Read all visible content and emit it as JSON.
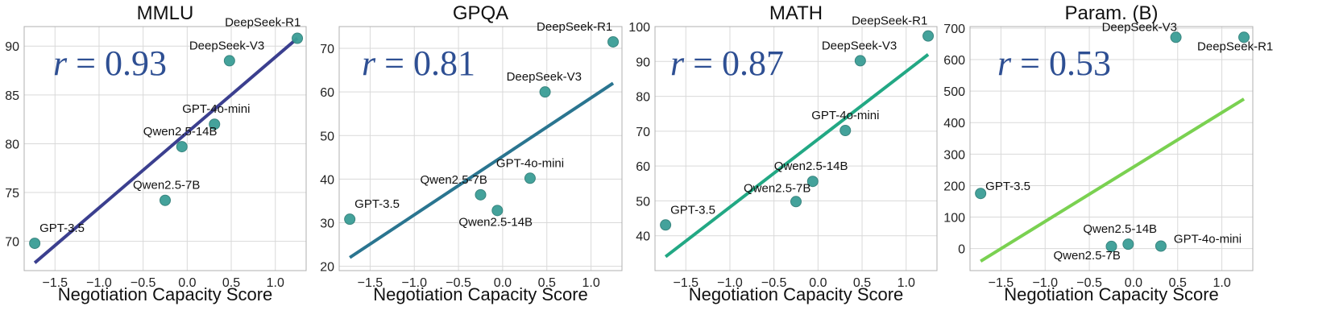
{
  "chart_data": [
    {
      "type": "scatter",
      "title": "MMLU",
      "xlabel": "Negotiation Capacity Score",
      "xlim": [
        -1.85,
        1.35
      ],
      "ylim": [
        67,
        92
      ],
      "xticks": [
        -1.5,
        -1.0,
        -0.5,
        0.0,
        0.5,
        1.0
      ],
      "yticks": [
        70,
        75,
        80,
        85,
        90
      ],
      "r_label": "0.93",
      "line_color": "#3b3f8f",
      "fit": {
        "x": [
          -1.73,
          1.25
        ],
        "y": [
          67.8,
          90.8
        ]
      },
      "points": [
        {
          "name": "DeepSeek-R1",
          "x": 1.25,
          "y": 90.8
        },
        {
          "name": "DeepSeek-V3",
          "x": 0.48,
          "y": 88.5
        },
        {
          "name": "GPT-4o-mini",
          "x": 0.31,
          "y": 82.0
        },
        {
          "name": "Qwen2.5-14B",
          "x": -0.06,
          "y": 79.7
        },
        {
          "name": "Qwen2.5-7B",
          "x": -0.25,
          "y": 74.2
        },
        {
          "name": "GPT-3.5",
          "x": -1.73,
          "y": 69.8
        }
      ]
    },
    {
      "type": "scatter",
      "title": "GPQA",
      "xlabel": "Negotiation Capacity Score",
      "xlim": [
        -1.85,
        1.35
      ],
      "ylim": [
        19,
        75
      ],
      "xticks": [
        -1.5,
        -1.0,
        -0.5,
        0.0,
        0.5,
        1.0
      ],
      "yticks": [
        20,
        30,
        40,
        50,
        60,
        70
      ],
      "r_label": "0.81",
      "line_color": "#2a7590",
      "fit": {
        "x": [
          -1.73,
          1.25
        ],
        "y": [
          22.0,
          62.0
        ]
      },
      "points": [
        {
          "name": "DeepSeek-R1",
          "x": 1.25,
          "y": 71.5
        },
        {
          "name": "DeepSeek-V3",
          "x": 0.48,
          "y": 60.0
        },
        {
          "name": "GPT-4o-mini",
          "x": 0.31,
          "y": 40.2
        },
        {
          "name": "Qwen2.5-7B",
          "x": -0.25,
          "y": 36.4
        },
        {
          "name": "Qwen2.5-14B",
          "x": -0.06,
          "y": 32.8
        },
        {
          "name": "GPT-3.5",
          "x": -1.73,
          "y": 30.8
        }
      ]
    },
    {
      "type": "scatter",
      "title": "MATH",
      "xlabel": "Negotiation Capacity Score",
      "xlim": [
        -1.85,
        1.35
      ],
      "ylim": [
        30,
        100
      ],
      "xticks": [
        -1.5,
        -1.0,
        -0.5,
        0.0,
        0.5,
        1.0
      ],
      "yticks": [
        40,
        50,
        60,
        70,
        80,
        90,
        100
      ],
      "r_label": "0.87",
      "line_color": "#22a884",
      "fit": {
        "x": [
          -1.73,
          1.25
        ],
        "y": [
          34.0,
          92.0
        ]
      },
      "points": [
        {
          "name": "DeepSeek-R1",
          "x": 1.25,
          "y": 97.3
        },
        {
          "name": "DeepSeek-V3",
          "x": 0.48,
          "y": 90.2
        },
        {
          "name": "GPT-4o-mini",
          "x": 0.31,
          "y": 70.2
        },
        {
          "name": "Qwen2.5-14B",
          "x": -0.06,
          "y": 55.6
        },
        {
          "name": "Qwen2.5-7B",
          "x": -0.25,
          "y": 49.8
        },
        {
          "name": "GPT-3.5",
          "x": -1.73,
          "y": 43.1
        }
      ]
    },
    {
      "type": "scatter",
      "title": "Param. (B)",
      "xlabel": "Negotiation Capacity Score",
      "xlim": [
        -1.85,
        1.35
      ],
      "ylim": [
        -70,
        705
      ],
      "xticks": [
        -1.5,
        -1.0,
        -0.5,
        0.0,
        0.5,
        1.0
      ],
      "yticks": [
        0,
        100,
        200,
        300,
        400,
        500,
        600,
        700
      ],
      "r_label": "0.53",
      "line_color": "#7ad151",
      "fit": {
        "x": [
          -1.73,
          1.25
        ],
        "y": [
          -40,
          475
        ]
      },
      "points": [
        {
          "name": "DeepSeek-V3",
          "x": 0.48,
          "y": 671
        },
        {
          "name": "DeepSeek-R1",
          "x": 1.25,
          "y": 671
        },
        {
          "name": "GPT-3.5",
          "x": -1.73,
          "y": 175
        },
        {
          "name": "Qwen2.5-14B",
          "x": -0.06,
          "y": 14
        },
        {
          "name": "Qwen2.5-7B",
          "x": -0.25,
          "y": 7
        },
        {
          "name": "GPT-4o-mini",
          "x": 0.31,
          "y": 8
        }
      ]
    }
  ]
}
